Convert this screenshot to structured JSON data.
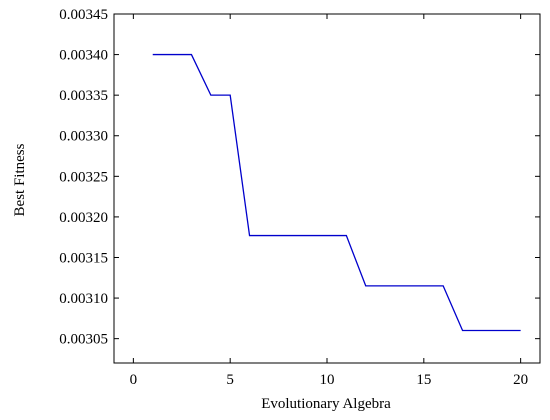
{
  "chart_data": {
    "type": "line",
    "title": "",
    "xlabel": "Evolutionary Algebra",
    "ylabel": "Best Fitness",
    "xlim": [
      -1,
      21
    ],
    "ylim": [
      0.00302,
      0.00345
    ],
    "grid": false,
    "x_ticks": [
      0,
      5,
      10,
      15,
      20
    ],
    "x_tick_labels": [
      "0",
      "5",
      "10",
      "15",
      "20"
    ],
    "y_ticks": [
      0.00305,
      0.0031,
      0.00315,
      0.0032,
      0.00325,
      0.0033,
      0.00335,
      0.0034,
      0.00345
    ],
    "y_tick_labels": [
      "0.00305",
      "0.00310",
      "0.00315",
      "0.00320",
      "0.00325",
      "0.00330",
      "0.00335",
      "0.00340",
      "0.00345"
    ],
    "series": [
      {
        "color": "#0000cc",
        "x": [
          1,
          2,
          3,
          4,
          5,
          6,
          7,
          8,
          9,
          10,
          11,
          12,
          13,
          14,
          15,
          16,
          17,
          18,
          19,
          20
        ],
        "y": [
          0.0034,
          0.0034,
          0.0034,
          0.00335,
          0.00335,
          0.003177,
          0.003177,
          0.003177,
          0.003177,
          0.003177,
          0.003177,
          0.003115,
          0.003115,
          0.003115,
          0.003115,
          0.003115,
          0.00306,
          0.00306,
          0.00306,
          0.00306
        ]
      }
    ]
  }
}
